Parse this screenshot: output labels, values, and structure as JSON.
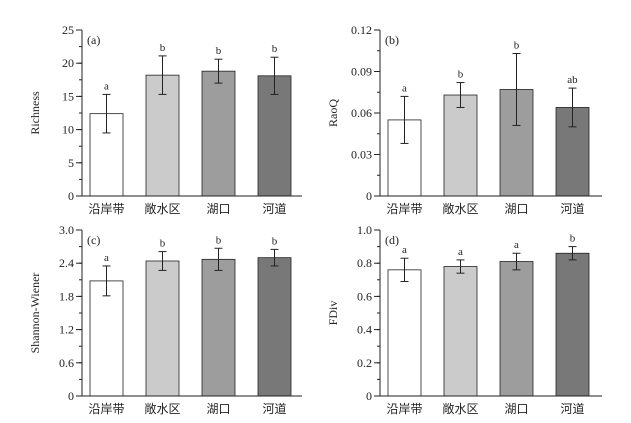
{
  "chart_data": [
    {
      "type": "bar",
      "panel_label": "(a)",
      "categories": [
        "沿岸带",
        "敞水区",
        "湖口",
        "河道"
      ],
      "values": [
        12.4,
        18.2,
        18.8,
        18.1
      ],
      "errors": [
        2.9,
        2.9,
        1.8,
        2.8
      ],
      "letters": [
        "a",
        "b",
        "b",
        "b"
      ],
      "ylabel": "Richness",
      "ylim": [
        0,
        25
      ],
      "yticks": [
        "0",
        "5",
        "10",
        "15",
        "20",
        "25"
      ],
      "ytick_values": [
        0,
        5,
        10,
        15,
        20,
        25
      ],
      "minor_step": 2.5,
      "colors": [
        "#ffffff",
        "#cbcbcb",
        "#9d9d9d",
        "#787878"
      ]
    },
    {
      "type": "bar",
      "panel_label": "(b)",
      "categories": [
        "沿岸带",
        "敞水区",
        "湖口",
        "河道"
      ],
      "values": [
        0.055,
        0.073,
        0.077,
        0.064
      ],
      "errors": [
        0.017,
        0.009,
        0.026,
        0.014
      ],
      "letters": [
        "a",
        "b",
        "b",
        "ab"
      ],
      "ylabel": "RaoQ",
      "ylim": [
        0,
        0.12
      ],
      "yticks": [
        "0",
        "0.03",
        "0.06",
        "0.09",
        "0.12"
      ],
      "ytick_values": [
        0,
        0.03,
        0.06,
        0.09,
        0.12
      ],
      "minor_step": 0.015,
      "colors": [
        "#ffffff",
        "#cbcbcb",
        "#9d9d9d",
        "#787878"
      ]
    },
    {
      "type": "bar",
      "panel_label": "(c)",
      "categories": [
        "沿岸带",
        "敞水区",
        "湖口",
        "河道"
      ],
      "values": [
        2.08,
        2.44,
        2.47,
        2.5
      ],
      "errors": [
        0.27,
        0.17,
        0.2,
        0.15
      ],
      "letters": [
        "a",
        "b",
        "b",
        "b"
      ],
      "ylabel": "Shannon-Wiener",
      "ylim": [
        0,
        3.0
      ],
      "yticks": [
        "0",
        "0.6",
        "1.2",
        "1.8",
        "2.4",
        "3.0"
      ],
      "ytick_values": [
        0,
        0.6,
        1.2,
        1.8,
        2.4,
        3.0
      ],
      "minor_step": 0.3,
      "colors": [
        "#ffffff",
        "#cbcbcb",
        "#9d9d9d",
        "#787878"
      ]
    },
    {
      "type": "bar",
      "panel_label": "(d)",
      "categories": [
        "沿岸带",
        "敞水区",
        "湖口",
        "河道"
      ],
      "values": [
        0.76,
        0.78,
        0.81,
        0.86
      ],
      "errors": [
        0.07,
        0.04,
        0.05,
        0.04
      ],
      "letters": [
        "a",
        "a",
        "a",
        "b"
      ],
      "ylabel": "FDiv",
      "ylim": [
        0,
        1.0
      ],
      "yticks": [
        "0",
        "0.2",
        "0.4",
        "0.6",
        "0.8",
        "1.0"
      ],
      "ytick_values": [
        0,
        0.2,
        0.4,
        0.6,
        0.8,
        1.0
      ],
      "minor_step": 0.1,
      "colors": [
        "#ffffff",
        "#cbcbcb",
        "#9d9d9d",
        "#787878"
      ]
    }
  ]
}
